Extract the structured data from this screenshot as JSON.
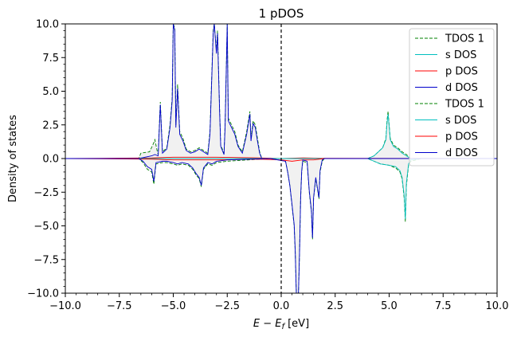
{
  "chart_data": {
    "type": "line",
    "title": "1 pDOS",
    "xlabel_main": "E − E",
    "xlabel_sub": "f",
    "xlabel_unit": " [eV]",
    "ylabel": "Density of states",
    "xlim": [
      -10,
      10
    ],
    "ylim": [
      -10,
      10
    ],
    "x_ticks": [
      -10,
      -7.5,
      -5,
      -2.5,
      0,
      2.5,
      5,
      7.5,
      10
    ],
    "x_tick_labels": [
      "−10.0",
      "−7.5",
      "−5.0",
      "−2.5",
      "0.0",
      "2.5",
      "5.0",
      "7.5",
      "10.0"
    ],
    "y_ticks": [
      -10,
      -7.5,
      -5,
      -2.5,
      0,
      2.5,
      5,
      7.5,
      10
    ],
    "y_tick_labels": [
      "−10.0",
      "−7.5",
      "−5.0",
      "−2.5",
      "0.0",
      "2.5",
      "5.0",
      "7.5",
      "10.0"
    ],
    "fermi_level": 0,
    "legend_position": "top-right",
    "grid": false,
    "legend": [
      {
        "label": "TDOS 1",
        "color": "#008000",
        "dash": "4,2"
      },
      {
        "label": "s DOS",
        "color": "#00bfbf",
        "dash": ""
      },
      {
        "label": "p DOS",
        "color": "#ff0000",
        "dash": ""
      },
      {
        "label": "d DOS",
        "color": "#0000cc",
        "dash": ""
      },
      {
        "label": "TDOS 1",
        "color": "#008000",
        "dash": "4,2"
      },
      {
        "label": "s DOS",
        "color": "#00bfbf",
        "dash": ""
      },
      {
        "label": "p DOS",
        "color": "#ff0000",
        "dash": ""
      },
      {
        "label": "d DOS",
        "color": "#0000cc",
        "dash": ""
      }
    ],
    "series": [
      {
        "name": "TDOS 1",
        "spin": "up",
        "color": "#008000",
        "dash": "4,2",
        "points": [
          [
            -10,
            0
          ],
          [
            -6.6,
            0
          ],
          [
            -6.5,
            0.4
          ],
          [
            -6.1,
            0.5
          ],
          [
            -5.95,
            1.0
          ],
          [
            -5.85,
            1.4
          ],
          [
            -5.75,
            0.6
          ],
          [
            -5.7,
            0.3
          ],
          [
            -5.6,
            4.2
          ],
          [
            -5.5,
            0.5
          ],
          [
            -5.3,
            0.8
          ],
          [
            -5.15,
            2.5
          ],
          [
            -5.05,
            4.5
          ],
          [
            -5.0,
            10
          ],
          [
            -4.93,
            9.7
          ],
          [
            -4.88,
            2.5
          ],
          [
            -4.8,
            5.5
          ],
          [
            -4.7,
            2.0
          ],
          [
            -4.55,
            1.5
          ],
          [
            -4.4,
            0.7
          ],
          [
            -4.2,
            0.5
          ],
          [
            -4.0,
            0.6
          ],
          [
            -3.8,
            0.8
          ],
          [
            -3.6,
            0.6
          ],
          [
            -3.4,
            0.4
          ],
          [
            -3.3,
            2.0
          ],
          [
            -3.2,
            7.0
          ],
          [
            -3.15,
            9.5
          ],
          [
            -3.1,
            10
          ],
          [
            -3.0,
            8.0
          ],
          [
            -2.95,
            9.5
          ],
          [
            -2.85,
            3.5
          ],
          [
            -2.8,
            1.0
          ],
          [
            -2.65,
            0.4
          ],
          [
            -2.6,
            2.5
          ],
          [
            -2.5,
            10
          ],
          [
            -2.45,
            3.0
          ],
          [
            -2.3,
            2.5
          ],
          [
            -2.15,
            2.0
          ],
          [
            -2.0,
            1.0
          ],
          [
            -1.8,
            0.5
          ],
          [
            -1.6,
            2.0
          ],
          [
            -1.45,
            3.5
          ],
          [
            -1.4,
            1.5
          ],
          [
            -1.3,
            2.8
          ],
          [
            -1.2,
            2.5
          ],
          [
            -1.1,
            1.5
          ],
          [
            -1.0,
            0.5
          ],
          [
            -0.9,
            0
          ],
          [
            4.0,
            0
          ],
          [
            4.3,
            0.2
          ],
          [
            4.5,
            0.5
          ],
          [
            4.7,
            0.8
          ],
          [
            4.85,
            1.5
          ],
          [
            4.9,
            2.8
          ],
          [
            4.95,
            3.5
          ],
          [
            5.0,
            2.5
          ],
          [
            5.05,
            1.5
          ],
          [
            5.2,
            1.0
          ],
          [
            5.4,
            0.8
          ],
          [
            5.6,
            0.5
          ],
          [
            5.8,
            0.3
          ],
          [
            6.0,
            0
          ],
          [
            10,
            0
          ]
        ]
      },
      {
        "name": "s DOS",
        "spin": "up",
        "color": "#00bfbf",
        "dash": "",
        "points": [
          [
            -10,
            0
          ],
          [
            4.0,
            0
          ],
          [
            4.3,
            0.2
          ],
          [
            4.5,
            0.5
          ],
          [
            4.7,
            0.8
          ],
          [
            4.85,
            1.4
          ],
          [
            4.9,
            2.6
          ],
          [
            4.95,
            3.3
          ],
          [
            5.0,
            2.4
          ],
          [
            5.05,
            1.4
          ],
          [
            5.2,
            0.9
          ],
          [
            5.4,
            0.7
          ],
          [
            5.6,
            0.4
          ],
          [
            5.8,
            0.2
          ],
          [
            6.0,
            0
          ],
          [
            10,
            0
          ]
        ]
      },
      {
        "name": "p DOS",
        "spin": "up",
        "color": "#ff0000",
        "dash": "",
        "points": [
          [
            -10,
            0
          ],
          [
            -6.0,
            0.05
          ],
          [
            -5.0,
            0.1
          ],
          [
            -3.0,
            0.1
          ],
          [
            -1.0,
            0.05
          ],
          [
            0,
            0
          ],
          [
            1.0,
            0.05
          ],
          [
            2.0,
            0.02
          ],
          [
            10,
            0
          ]
        ]
      },
      {
        "name": "d DOS",
        "spin": "up",
        "color": "#0000cc",
        "dash": "",
        "points": [
          [
            -10,
            0
          ],
          [
            -6.6,
            0
          ],
          [
            -6.0,
            0.2
          ],
          [
            -5.85,
            0.3
          ],
          [
            -5.7,
            0.2
          ],
          [
            -5.6,
            4.0
          ],
          [
            -5.5,
            0.4
          ],
          [
            -5.3,
            0.7
          ],
          [
            -5.15,
            2.3
          ],
          [
            -5.05,
            4.3
          ],
          [
            -5.0,
            10
          ],
          [
            -4.93,
            9.5
          ],
          [
            -4.88,
            2.3
          ],
          [
            -4.8,
            5.2
          ],
          [
            -4.7,
            1.8
          ],
          [
            -4.55,
            1.3
          ],
          [
            -4.4,
            0.6
          ],
          [
            -4.2,
            0.4
          ],
          [
            -4.0,
            0.5
          ],
          [
            -3.8,
            0.7
          ],
          [
            -3.6,
            0.5
          ],
          [
            -3.4,
            0.3
          ],
          [
            -3.3,
            1.8
          ],
          [
            -3.2,
            6.8
          ],
          [
            -3.15,
            9.3
          ],
          [
            -3.1,
            10
          ],
          [
            -3.0,
            7.8
          ],
          [
            -2.95,
            9.3
          ],
          [
            -2.85,
            3.3
          ],
          [
            -2.8,
            0.9
          ],
          [
            -2.65,
            0.3
          ],
          [
            -2.6,
            2.3
          ],
          [
            -2.5,
            10
          ],
          [
            -2.45,
            2.8
          ],
          [
            -2.3,
            2.3
          ],
          [
            -2.15,
            1.8
          ],
          [
            -2.0,
            0.9
          ],
          [
            -1.8,
            0.4
          ],
          [
            -1.6,
            1.8
          ],
          [
            -1.45,
            3.3
          ],
          [
            -1.4,
            1.3
          ],
          [
            -1.3,
            2.6
          ],
          [
            -1.2,
            2.3
          ],
          [
            -1.1,
            1.3
          ],
          [
            -1.0,
            0.4
          ],
          [
            -0.9,
            0
          ],
          [
            10,
            0
          ]
        ]
      },
      {
        "name": "TDOS 1",
        "spin": "down",
        "color": "#008000",
        "dash": "4,2",
        "points": [
          [
            -10,
            0
          ],
          [
            -6.6,
            0
          ],
          [
            -6.4,
            -0.3
          ],
          [
            -6.2,
            -0.8
          ],
          [
            -6.0,
            -1.0
          ],
          [
            -5.9,
            -1.9
          ],
          [
            -5.8,
            -0.4
          ],
          [
            -5.5,
            -0.3
          ],
          [
            -5.3,
            -0.3
          ],
          [
            -5.0,
            -0.4
          ],
          [
            -4.8,
            -0.5
          ],
          [
            -4.6,
            -0.4
          ],
          [
            -4.3,
            -0.5
          ],
          [
            -4.1,
            -0.8
          ],
          [
            -3.95,
            -1.2
          ],
          [
            -3.8,
            -1.5
          ],
          [
            -3.7,
            -2.1
          ],
          [
            -3.6,
            -0.8
          ],
          [
            -3.4,
            -0.4
          ],
          [
            -3.2,
            -0.5
          ],
          [
            -3.0,
            -0.3
          ],
          [
            -2.5,
            -0.2
          ],
          [
            -1.5,
            -0.1
          ],
          [
            -0.5,
            0
          ],
          [
            0.2,
            -0.2
          ],
          [
            0.3,
            -1.0
          ],
          [
            0.4,
            -2.0
          ],
          [
            0.5,
            -3.5
          ],
          [
            0.6,
            -5.0
          ],
          [
            0.65,
            -7.0
          ],
          [
            0.7,
            -10
          ],
          [
            0.8,
            -10
          ],
          [
            0.85,
            -7.0
          ],
          [
            0.9,
            -3.0
          ],
          [
            0.95,
            -1.0
          ],
          [
            1.0,
            -0.2
          ],
          [
            1.2,
            -0.3
          ],
          [
            1.3,
            -2.5
          ],
          [
            1.4,
            -4.0
          ],
          [
            1.45,
            -6.0
          ],
          [
            1.5,
            -3.0
          ],
          [
            1.6,
            -1.5
          ],
          [
            1.75,
            -3.0
          ],
          [
            1.8,
            -1.0
          ],
          [
            1.9,
            -0.2
          ],
          [
            2.0,
            0
          ],
          [
            4.0,
            0
          ],
          [
            4.3,
            -0.2
          ],
          [
            4.6,
            -0.4
          ],
          [
            5.0,
            -0.5
          ],
          [
            5.3,
            -0.7
          ],
          [
            5.5,
            -1.0
          ],
          [
            5.6,
            -1.5
          ],
          [
            5.7,
            -3.0
          ],
          [
            5.75,
            -4.7
          ],
          [
            5.8,
            -2.0
          ],
          [
            5.9,
            -0.5
          ],
          [
            6.0,
            -0.2
          ],
          [
            6.5,
            0
          ],
          [
            10,
            0
          ]
        ]
      },
      {
        "name": "s DOS",
        "spin": "down",
        "color": "#00bfbf",
        "dash": "",
        "points": [
          [
            -10,
            0
          ],
          [
            4.0,
            0
          ],
          [
            4.3,
            -0.2
          ],
          [
            4.6,
            -0.4
          ],
          [
            5.0,
            -0.5
          ],
          [
            5.3,
            -0.6
          ],
          [
            5.5,
            -0.9
          ],
          [
            5.6,
            -1.4
          ],
          [
            5.7,
            -2.8
          ],
          [
            5.75,
            -4.5
          ],
          [
            5.8,
            -1.8
          ],
          [
            5.9,
            -0.4
          ],
          [
            6.0,
            -0.1
          ],
          [
            6.5,
            0
          ],
          [
            10,
            0
          ]
        ]
      },
      {
        "name": "p DOS",
        "spin": "down",
        "color": "#ff0000",
        "dash": "",
        "points": [
          [
            -10,
            0
          ],
          [
            -6.0,
            -0.05
          ],
          [
            -5.0,
            -0.1
          ],
          [
            -3.0,
            -0.1
          ],
          [
            -1.0,
            -0.05
          ],
          [
            0,
            -0.1
          ],
          [
            0.5,
            -0.2
          ],
          [
            1.0,
            -0.1
          ],
          [
            1.5,
            -0.1
          ],
          [
            2.0,
            0
          ],
          [
            10,
            0
          ]
        ]
      },
      {
        "name": "d DOS",
        "spin": "down",
        "color": "#0000cc",
        "dash": "",
        "points": [
          [
            -10,
            0
          ],
          [
            -6.6,
            0
          ],
          [
            -6.4,
            -0.2
          ],
          [
            -6.2,
            -0.6
          ],
          [
            -6.0,
            -0.8
          ],
          [
            -5.9,
            -1.7
          ],
          [
            -5.8,
            -0.3
          ],
          [
            -5.5,
            -0.2
          ],
          [
            -5.3,
            -0.2
          ],
          [
            -5.0,
            -0.3
          ],
          [
            -4.8,
            -0.4
          ],
          [
            -4.6,
            -0.3
          ],
          [
            -4.3,
            -0.4
          ],
          [
            -4.1,
            -0.7
          ],
          [
            -3.95,
            -1.1
          ],
          [
            -3.8,
            -1.4
          ],
          [
            -3.7,
            -2.0
          ],
          [
            -3.6,
            -0.7
          ],
          [
            -3.4,
            -0.3
          ],
          [
            -3.2,
            -0.4
          ],
          [
            -3.0,
            -0.2
          ],
          [
            -2.5,
            -0.1
          ],
          [
            -0.5,
            0
          ],
          [
            0.2,
            -0.2
          ],
          [
            0.3,
            -1.0
          ],
          [
            0.4,
            -2.0
          ],
          [
            0.5,
            -3.4
          ],
          [
            0.6,
            -4.9
          ],
          [
            0.65,
            -6.9
          ],
          [
            0.7,
            -10
          ],
          [
            0.8,
            -10
          ],
          [
            0.85,
            -6.9
          ],
          [
            0.9,
            -2.9
          ],
          [
            0.95,
            -0.9
          ],
          [
            1.0,
            -0.1
          ],
          [
            1.2,
            -0.2
          ],
          [
            1.3,
            -2.4
          ],
          [
            1.4,
            -3.9
          ],
          [
            1.45,
            -5.9
          ],
          [
            1.5,
            -2.9
          ],
          [
            1.6,
            -1.4
          ],
          [
            1.75,
            -2.9
          ],
          [
            1.8,
            -0.9
          ],
          [
            1.9,
            -0.1
          ],
          [
            2.0,
            0
          ],
          [
            10,
            0
          ]
        ]
      }
    ]
  }
}
